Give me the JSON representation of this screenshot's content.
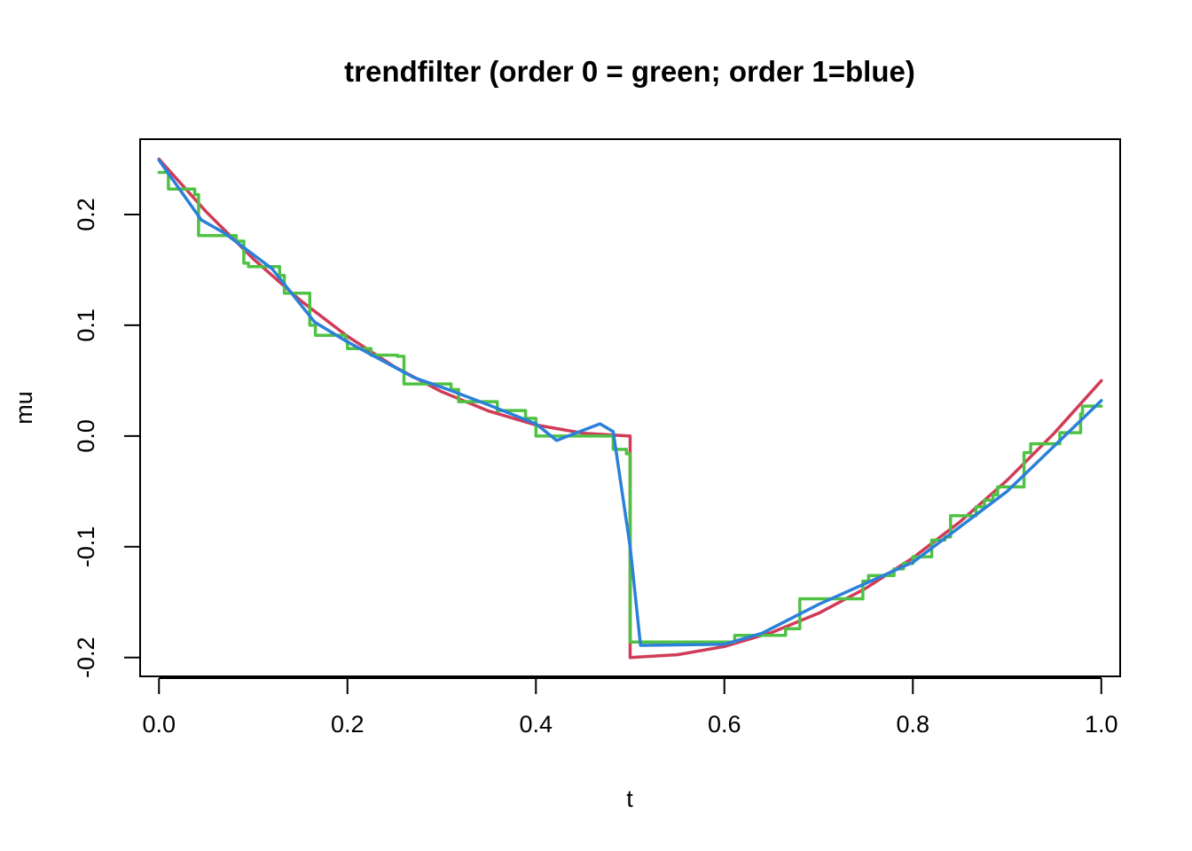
{
  "chart_data": {
    "type": "line",
    "title": "trendfilter (order 0 = green; order 1=blue)",
    "xlabel": "t",
    "ylabel": "mu",
    "xlim": [
      -0.02,
      1.02
    ],
    "ylim": [
      -0.217,
      0.268
    ],
    "xticks": [
      0.0,
      0.2,
      0.4,
      0.6,
      0.8,
      1.0
    ],
    "xtick_labels": [
      "0.0",
      "0.2",
      "0.4",
      "0.6",
      "0.8",
      "1.0"
    ],
    "yticks": [
      -0.2,
      -0.1,
      0.0,
      0.1,
      0.2
    ],
    "ytick_labels": [
      "-0.2",
      "-0.1",
      "0.0",
      "0.1",
      "0.2"
    ],
    "grid": false,
    "legend": "none",
    "series": [
      {
        "color": "#d03b58",
        "points": [
          [
            0.0,
            0.25
          ],
          [
            0.05,
            0.2025
          ],
          [
            0.1,
            0.16
          ],
          [
            0.15,
            0.1225
          ],
          [
            0.2,
            0.09
          ],
          [
            0.25,
            0.0625
          ],
          [
            0.3,
            0.04
          ],
          [
            0.35,
            0.0225
          ],
          [
            0.4,
            0.01
          ],
          [
            0.45,
            0.0025
          ],
          [
            0.5,
            0.0
          ],
          [
            0.5,
            -0.2
          ],
          [
            0.55,
            -0.1975
          ],
          [
            0.6,
            -0.19
          ],
          [
            0.65,
            -0.1775
          ],
          [
            0.7,
            -0.16
          ],
          [
            0.75,
            -0.1375
          ],
          [
            0.8,
            -0.11
          ],
          [
            0.85,
            -0.0775
          ],
          [
            0.9,
            -0.04
          ],
          [
            0.95,
            0.0025
          ],
          [
            1.0,
            0.05
          ]
        ]
      },
      {
        "color": "#4fc244",
        "points": [
          [
            0.0,
            0.238
          ],
          [
            0.01,
            0.238
          ],
          [
            0.01,
            0.223
          ],
          [
            0.038,
            0.223
          ],
          [
            0.038,
            0.218
          ],
          [
            0.042,
            0.218
          ],
          [
            0.042,
            0.181
          ],
          [
            0.082,
            0.181
          ],
          [
            0.082,
            0.176
          ],
          [
            0.09,
            0.176
          ],
          [
            0.09,
            0.156
          ],
          [
            0.095,
            0.156
          ],
          [
            0.095,
            0.153
          ],
          [
            0.128,
            0.153
          ],
          [
            0.128,
            0.145
          ],
          [
            0.133,
            0.145
          ],
          [
            0.133,
            0.129
          ],
          [
            0.16,
            0.129
          ],
          [
            0.16,
            0.1
          ],
          [
            0.166,
            0.1
          ],
          [
            0.166,
            0.091
          ],
          [
            0.198,
            0.091
          ],
          [
            0.198,
            0.086
          ],
          [
            0.2,
            0.086
          ],
          [
            0.2,
            0.079
          ],
          [
            0.225,
            0.079
          ],
          [
            0.225,
            0.073
          ],
          [
            0.253,
            0.073
          ],
          [
            0.253,
            0.072
          ],
          [
            0.26,
            0.072
          ],
          [
            0.26,
            0.047
          ],
          [
            0.31,
            0.047
          ],
          [
            0.31,
            0.042
          ],
          [
            0.318,
            0.042
          ],
          [
            0.318,
            0.031
          ],
          [
            0.359,
            0.031
          ],
          [
            0.359,
            0.023
          ],
          [
            0.389,
            0.023
          ],
          [
            0.389,
            0.016
          ],
          [
            0.4,
            0.016
          ],
          [
            0.4,
            0.0
          ],
          [
            0.482,
            0.0
          ],
          [
            0.482,
            -0.012
          ],
          [
            0.496,
            -0.012
          ],
          [
            0.496,
            -0.016
          ],
          [
            0.5,
            -0.016
          ],
          [
            0.5,
            -0.186
          ],
          [
            0.611,
            -0.186
          ],
          [
            0.611,
            -0.18
          ],
          [
            0.665,
            -0.18
          ],
          [
            0.665,
            -0.174
          ],
          [
            0.68,
            -0.174
          ],
          [
            0.68,
            -0.147
          ],
          [
            0.747,
            -0.147
          ],
          [
            0.747,
            -0.131
          ],
          [
            0.753,
            -0.131
          ],
          [
            0.753,
            -0.126
          ],
          [
            0.78,
            -0.126
          ],
          [
            0.78,
            -0.12
          ],
          [
            0.79,
            -0.12
          ],
          [
            0.79,
            -0.115
          ],
          [
            0.8,
            -0.115
          ],
          [
            0.8,
            -0.109
          ],
          [
            0.82,
            -0.109
          ],
          [
            0.82,
            -0.094
          ],
          [
            0.834,
            -0.094
          ],
          [
            0.834,
            -0.091
          ],
          [
            0.84,
            -0.091
          ],
          [
            0.84,
            -0.072
          ],
          [
            0.867,
            -0.072
          ],
          [
            0.867,
            -0.064
          ],
          [
            0.876,
            -0.064
          ],
          [
            0.876,
            -0.058
          ],
          [
            0.885,
            -0.058
          ],
          [
            0.885,
            -0.053
          ],
          [
            0.89,
            -0.053
          ],
          [
            0.89,
            -0.046
          ],
          [
            0.918,
            -0.046
          ],
          [
            0.918,
            -0.015
          ],
          [
            0.925,
            -0.015
          ],
          [
            0.925,
            -0.007
          ],
          [
            0.956,
            -0.007
          ],
          [
            0.956,
            0.003
          ],
          [
            0.978,
            0.003
          ],
          [
            0.978,
            0.02
          ],
          [
            0.98,
            0.02
          ],
          [
            0.98,
            0.027
          ],
          [
            1.0,
            0.027
          ]
        ]
      },
      {
        "color": "#2b80d9",
        "points": [
          [
            0.0,
            0.249
          ],
          [
            0.045,
            0.195
          ],
          [
            0.07,
            0.183
          ],
          [
            0.12,
            0.151
          ],
          [
            0.165,
            0.103
          ],
          [
            0.2,
            0.085
          ],
          [
            0.27,
            0.053
          ],
          [
            0.31,
            0.041
          ],
          [
            0.35,
            0.028
          ],
          [
            0.4,
            0.011
          ],
          [
            0.422,
            -0.004
          ],
          [
            0.468,
            0.011
          ],
          [
            0.482,
            0.004
          ],
          [
            0.5,
            -0.1
          ],
          [
            0.511,
            -0.189
          ],
          [
            0.6,
            -0.188
          ],
          [
            0.64,
            -0.178
          ],
          [
            0.7,
            -0.152
          ],
          [
            0.8,
            -0.114
          ],
          [
            0.9,
            -0.05
          ],
          [
            1.0,
            0.032
          ]
        ]
      }
    ]
  }
}
